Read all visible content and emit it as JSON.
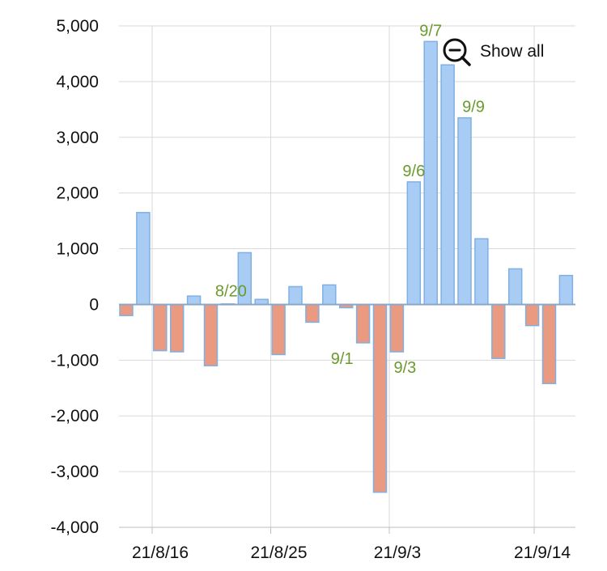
{
  "zoom": {
    "label": "Show all",
    "icon": "zoom-out-icon"
  },
  "colors": {
    "positive_fill": "#a9ccf5",
    "positive_stroke": "#7fb0e3",
    "negative_fill": "#e99a80",
    "negative_stroke": "#7fb0e3",
    "annotation": "#6b9a2e",
    "grid": "#d9d9d9",
    "zero_line": "#8aa7c8"
  },
  "chart_data": {
    "type": "bar",
    "title": "",
    "xlabel": "",
    "ylabel": "",
    "ylim": [
      -4000,
      5000
    ],
    "yticks": [
      5000,
      4000,
      3000,
      2000,
      1000,
      0,
      -1000,
      -2000,
      -3000,
      -4000
    ],
    "ytick_labels": [
      "5,000",
      "4,000",
      "3,000",
      "2,000",
      "1,000",
      "0",
      "-1,000",
      "-2,000",
      "-3,000",
      "-4,000"
    ],
    "xtick_labels": [
      {
        "label": "21/8/16",
        "date": "2021-08-16"
      },
      {
        "label": "21/8/25",
        "date": "2021-08-25"
      },
      {
        "label": "21/9/3",
        "date": "2021-09-03"
      },
      {
        "label": "21/9/14",
        "date": "2021-09-14"
      }
    ],
    "grid": true,
    "series": [
      {
        "points": [
          {
            "date": "2021-08-13",
            "value": -200
          },
          {
            "date": "2021-08-16",
            "value": 1650
          },
          {
            "date": "2021-08-17",
            "value": -830
          },
          {
            "date": "2021-08-18",
            "value": -850
          },
          {
            "date": "2021-08-19",
            "value": 150
          },
          {
            "date": "2021-08-20",
            "value": -1100
          },
          {
            "date": "2021-08-23",
            "value": 10
          },
          {
            "date": "2021-08-24",
            "value": 930
          },
          {
            "date": "2021-08-25",
            "value": 90
          },
          {
            "date": "2021-08-26",
            "value": -900
          },
          {
            "date": "2021-08-27",
            "value": 320
          },
          {
            "date": "2021-08-30",
            "value": -320
          },
          {
            "date": "2021-08-31",
            "value": 350
          },
          {
            "date": "2021-09-01",
            "value": -60
          },
          {
            "date": "2021-09-02",
            "value": -690
          },
          {
            "date": "2021-09-03",
            "value": -3370
          },
          {
            "date": "2021-09-06",
            "value": -850
          },
          {
            "date": "2021-09-07",
            "value": 2200
          },
          {
            "date": "2021-09-08",
            "value": 4720
          },
          {
            "date": "2021-09-09",
            "value": 4300
          },
          {
            "date": "2021-09-10",
            "value": 3350
          },
          {
            "date": "2021-09-13",
            "value": 1180
          },
          {
            "date": "2021-09-14",
            "value": -970
          },
          {
            "date": "2021-09-15",
            "value": 640
          },
          {
            "date": "2021-09-16",
            "value": -380
          },
          {
            "date": "2021-09-17",
            "value": -1420
          },
          {
            "date": "2021-09-21",
            "value": 520
          }
        ]
      }
    ],
    "annotations": [
      {
        "text": "8/20",
        "bar_index": 6,
        "side": "top"
      },
      {
        "text": "9/1",
        "bar_index": 14,
        "side": "bottom-left"
      },
      {
        "text": "9/3",
        "bar_index": 16,
        "side": "bottom"
      },
      {
        "text": "9/6",
        "bar_index": 17,
        "side": "top"
      },
      {
        "text": "9/7",
        "bar_index": 18,
        "side": "top"
      },
      {
        "text": "9/9",
        "bar_index": 20,
        "side": "top"
      }
    ]
  }
}
